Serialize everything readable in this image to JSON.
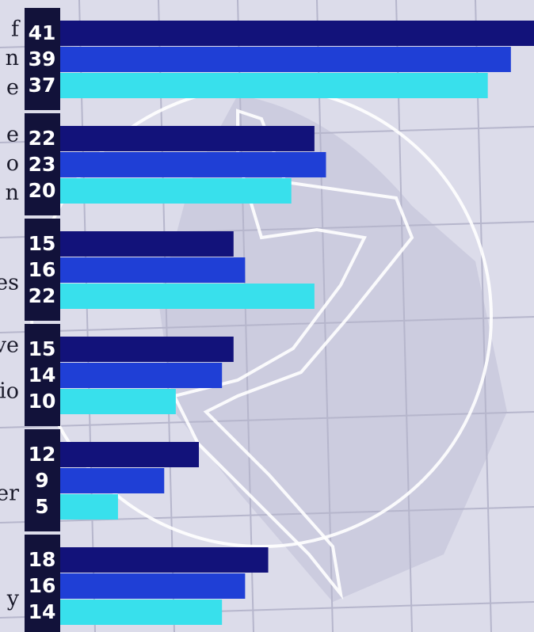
{
  "chart_data": {
    "type": "bar",
    "orientation": "horizontal",
    "categories": [
      [
        "f",
        "n",
        "e"
      ],
      [
        "e",
        "o",
        "n"
      ],
      [
        "es"
      ],
      [
        "ve",
        "io"
      ],
      [
        "er"
      ],
      [
        "y"
      ]
    ],
    "series": [
      {
        "color": "#12127a",
        "values": [
          41,
          22,
          15,
          15,
          12,
          18
        ]
      },
      {
        "color": "#1f3fd6",
        "values": [
          39,
          23,
          16,
          14,
          9,
          16
        ]
      },
      {
        "color": "#38e0ec",
        "values": [
          37,
          20,
          22,
          10,
          5,
          14
        ]
      }
    ],
    "xlim": [
      0,
      41
    ]
  }
}
